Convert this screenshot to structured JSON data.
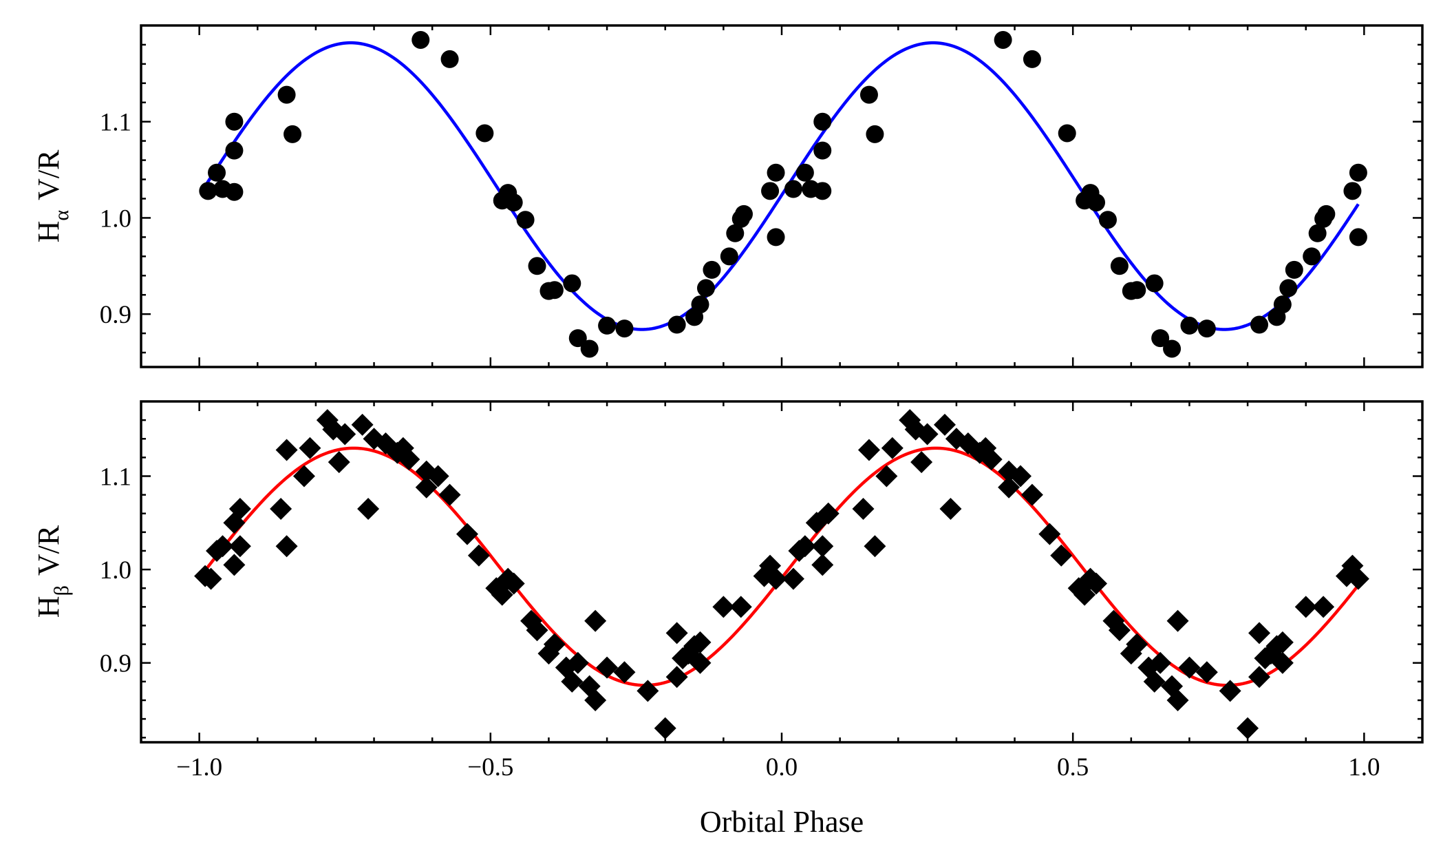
{
  "chart_data": [
    {
      "type": "scatter",
      "panel": "top",
      "title": "",
      "ylabel_main": "H",
      "ylabel_sub": "α",
      "ylabel_rest": "V/R",
      "xlabel": "",
      "xlim": [
        -1.1,
        1.1
      ],
      "ylim": [
        0.845,
        1.2
      ],
      "xticks": [
        -1.0,
        -0.5,
        0.0,
        0.5,
        1.0
      ],
      "xtick_labels": [
        "",
        "",
        "",
        "",
        ""
      ],
      "yticks": [
        0.9,
        1.0,
        1.1
      ],
      "ytick_labels": [
        "0.9",
        "1.0",
        "1.1"
      ],
      "marker": "circle",
      "marker_color": "#000000",
      "fit_color": "#0000ff",
      "fit": {
        "mean": 1.033,
        "amplitude": 0.149,
        "period": 1.0,
        "peak_phase": -0.74,
        "x_range": [
          -0.99,
          0.99
        ]
      },
      "series": [
        {
          "name": "H-alpha V/R",
          "points": [
            [
              -0.985,
              1.028
            ],
            [
              -0.97,
              1.047
            ],
            [
              -0.96,
              1.03
            ],
            [
              -0.94,
              1.027
            ],
            [
              -0.94,
              1.07
            ],
            [
              -0.94,
              1.1
            ],
            [
              -0.85,
              1.128
            ],
            [
              -0.84,
              1.087
            ],
            [
              -0.62,
              1.185
            ],
            [
              -0.57,
              1.165
            ],
            [
              -0.51,
              1.088
            ],
            [
              -0.48,
              1.018
            ],
            [
              -0.47,
              1.026
            ],
            [
              -0.46,
              1.016
            ],
            [
              -0.44,
              0.998
            ],
            [
              -0.42,
              0.95
            ],
            [
              -0.4,
              0.924
            ],
            [
              -0.39,
              0.925
            ],
            [
              -0.36,
              0.932
            ],
            [
              -0.35,
              0.875
            ],
            [
              -0.33,
              0.864
            ],
            [
              -0.3,
              0.888
            ],
            [
              -0.27,
              0.885
            ],
            [
              -0.18,
              0.889
            ],
            [
              -0.15,
              0.897
            ],
            [
              -0.14,
              0.91
            ],
            [
              -0.13,
              0.927
            ],
            [
              -0.12,
              0.946
            ],
            [
              -0.09,
              0.96
            ],
            [
              -0.08,
              0.984
            ],
            [
              -0.07,
              0.999
            ],
            [
              -0.065,
              1.004
            ],
            [
              -0.02,
              1.028
            ],
            [
              -0.01,
              1.047
            ],
            [
              -0.01,
              0.98
            ],
            [
              0.02,
              1.03
            ],
            [
              0.04,
              1.047
            ],
            [
              0.05,
              1.03
            ],
            [
              0.07,
              1.028
            ],
            [
              0.07,
              1.07
            ],
            [
              0.07,
              1.1
            ],
            [
              0.15,
              1.128
            ],
            [
              0.16,
              1.087
            ],
            [
              0.38,
              1.185
            ],
            [
              0.43,
              1.165
            ],
            [
              0.49,
              1.088
            ],
            [
              0.52,
              1.018
            ],
            [
              0.53,
              1.026
            ],
            [
              0.54,
              1.016
            ],
            [
              0.56,
              0.998
            ],
            [
              0.58,
              0.95
            ],
            [
              0.6,
              0.924
            ],
            [
              0.61,
              0.925
            ],
            [
              0.64,
              0.932
            ],
            [
              0.65,
              0.875
            ],
            [
              0.67,
              0.864
            ],
            [
              0.7,
              0.888
            ],
            [
              0.73,
              0.885
            ],
            [
              0.82,
              0.889
            ],
            [
              0.85,
              0.897
            ],
            [
              0.86,
              0.91
            ],
            [
              0.87,
              0.927
            ],
            [
              0.88,
              0.946
            ],
            [
              0.91,
              0.96
            ],
            [
              0.92,
              0.984
            ],
            [
              0.93,
              0.999
            ],
            [
              0.935,
              1.004
            ],
            [
              0.98,
              1.028
            ],
            [
              0.99,
              1.047
            ],
            [
              0.99,
              0.98
            ]
          ]
        }
      ]
    },
    {
      "type": "scatter",
      "panel": "bottom",
      "title": "",
      "ylabel_main": "H",
      "ylabel_sub": "β",
      "ylabel_rest": "V/R",
      "xlabel": "Orbital Phase",
      "xlim": [
        -1.1,
        1.1
      ],
      "ylim": [
        0.815,
        1.18
      ],
      "xticks": [
        -1.0,
        -0.5,
        0.0,
        0.5,
        1.0
      ],
      "xtick_labels": [
        "−1.0",
        "−0.5",
        "0.0",
        "0.5",
        "1.0"
      ],
      "yticks": [
        0.9,
        1.0,
        1.1
      ],
      "ytick_labels": [
        "0.9",
        "1.0",
        "1.1"
      ],
      "marker": "diamond",
      "marker_color": "#000000",
      "fit_color": "#ff0000",
      "fit": {
        "mean": 1.003,
        "amplitude": 0.127,
        "period": 1.0,
        "peak_phase": -0.735,
        "x_range": [
          -0.99,
          0.99
        ]
      },
      "series": [
        {
          "name": "H-beta V/R",
          "points": [
            [
              -0.99,
              0.993
            ],
            [
              -0.98,
              0.99
            ],
            [
              -0.97,
              1.02
            ],
            [
              -0.96,
              1.025
            ],
            [
              -0.94,
              1.05
            ],
            [
              -0.94,
              1.005
            ],
            [
              -0.93,
              1.025
            ],
            [
              -0.93,
              1.065
            ],
            [
              -0.86,
              1.065
            ],
            [
              -0.85,
              1.025
            ],
            [
              -0.85,
              1.128
            ],
            [
              -0.82,
              1.1
            ],
            [
              -0.81,
              1.13
            ],
            [
              -0.78,
              1.16
            ],
            [
              -0.77,
              1.15
            ],
            [
              -0.76,
              1.115
            ],
            [
              -0.75,
              1.145
            ],
            [
              -0.72,
              1.155
            ],
            [
              -0.71,
              1.065
            ],
            [
              -0.7,
              1.14
            ],
            [
              -0.68,
              1.135
            ],
            [
              -0.66,
              1.125
            ],
            [
              -0.65,
              1.13
            ],
            [
              -0.64,
              1.118
            ],
            [
              -0.61,
              1.105
            ],
            [
              -0.61,
              1.088
            ],
            [
              -0.59,
              1.1
            ],
            [
              -0.57,
              1.08
            ],
            [
              -0.54,
              1.038
            ],
            [
              -0.52,
              1.015
            ],
            [
              -0.49,
              0.98
            ],
            [
              -0.48,
              0.973
            ],
            [
              -0.47,
              0.99
            ],
            [
              -0.46,
              0.985
            ],
            [
              -0.43,
              0.945
            ],
            [
              -0.42,
              0.935
            ],
            [
              -0.4,
              0.91
            ],
            [
              -0.39,
              0.92
            ],
            [
              -0.37,
              0.895
            ],
            [
              -0.36,
              0.88
            ],
            [
              -0.35,
              0.9
            ],
            [
              -0.33,
              0.875
            ],
            [
              -0.32,
              0.86
            ],
            [
              -0.32,
              0.945
            ],
            [
              -0.3,
              0.895
            ],
            [
              -0.27,
              0.89
            ],
            [
              -0.23,
              0.87
            ],
            [
              -0.2,
              0.83
            ],
            [
              -0.18,
              0.932
            ],
            [
              -0.18,
              0.885
            ],
            [
              -0.17,
              0.905
            ],
            [
              -0.16,
              0.91
            ],
            [
              -0.15,
              0.918
            ],
            [
              -0.14,
              0.922
            ],
            [
              -0.14,
              0.9
            ],
            [
              -0.1,
              0.96
            ],
            [
              -0.07,
              0.96
            ],
            [
              -0.03,
              0.993
            ],
            [
              -0.02,
              1.004
            ],
            [
              -0.01,
              0.99
            ],
            [
              0.02,
              0.99
            ],
            [
              0.03,
              1.02
            ],
            [
              0.04,
              1.025
            ],
            [
              0.06,
              1.05
            ],
            [
              0.07,
              1.005
            ],
            [
              0.07,
              1.025
            ],
            [
              0.08,
              1.06
            ],
            [
              0.14,
              1.065
            ],
            [
              0.16,
              1.025
            ],
            [
              0.15,
              1.128
            ],
            [
              0.18,
              1.1
            ],
            [
              0.19,
              1.13
            ],
            [
              0.22,
              1.16
            ],
            [
              0.23,
              1.15
            ],
            [
              0.24,
              1.115
            ],
            [
              0.25,
              1.145
            ],
            [
              0.28,
              1.155
            ],
            [
              0.29,
              1.065
            ],
            [
              0.3,
              1.14
            ],
            [
              0.32,
              1.135
            ],
            [
              0.34,
              1.125
            ],
            [
              0.35,
              1.13
            ],
            [
              0.36,
              1.118
            ],
            [
              0.39,
              1.105
            ],
            [
              0.39,
              1.088
            ],
            [
              0.41,
              1.1
            ],
            [
              0.43,
              1.08
            ],
            [
              0.46,
              1.038
            ],
            [
              0.48,
              1.015
            ],
            [
              0.51,
              0.98
            ],
            [
              0.52,
              0.973
            ],
            [
              0.53,
              0.99
            ],
            [
              0.54,
              0.985
            ],
            [
              0.57,
              0.945
            ],
            [
              0.58,
              0.935
            ],
            [
              0.6,
              0.91
            ],
            [
              0.61,
              0.92
            ],
            [
              0.63,
              0.895
            ],
            [
              0.64,
              0.88
            ],
            [
              0.65,
              0.9
            ],
            [
              0.67,
              0.875
            ],
            [
              0.68,
              0.86
            ],
            [
              0.68,
              0.945
            ],
            [
              0.7,
              0.895
            ],
            [
              0.73,
              0.89
            ],
            [
              0.77,
              0.87
            ],
            [
              0.8,
              0.83
            ],
            [
              0.82,
              0.932
            ],
            [
              0.82,
              0.885
            ],
            [
              0.83,
              0.905
            ],
            [
              0.84,
              0.91
            ],
            [
              0.85,
              0.918
            ],
            [
              0.86,
              0.922
            ],
            [
              0.86,
              0.9
            ],
            [
              0.9,
              0.96
            ],
            [
              0.93,
              0.96
            ],
            [
              0.97,
              0.993
            ],
            [
              0.98,
              1.004
            ],
            [
              0.99,
              0.99
            ]
          ]
        }
      ]
    }
  ]
}
